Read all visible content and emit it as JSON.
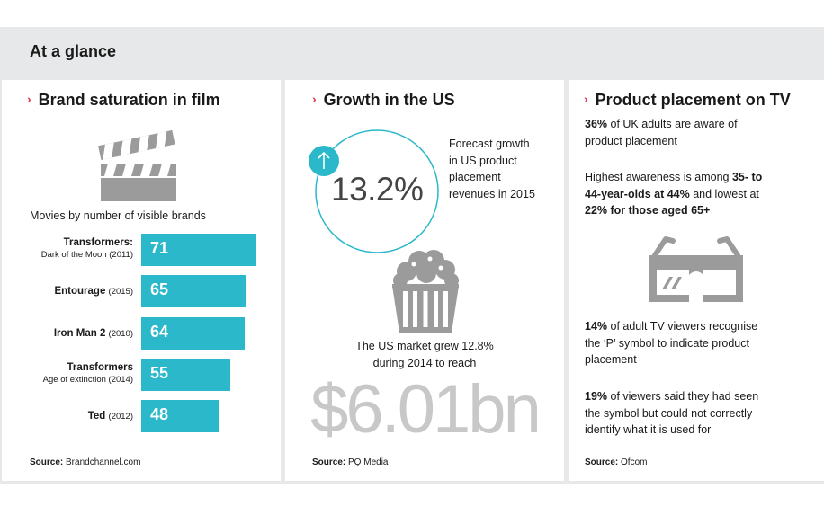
{
  "header": {
    "title": "At a glance"
  },
  "panels": {
    "film": {
      "title": "Brand saturation in film",
      "subtitle": "Movies by number of visible brands",
      "source_label": "Source:",
      "source": "Brandchannel.com",
      "icon": "clapperboard-icon"
    },
    "us": {
      "title": "Growth in the US",
      "percent": "13.2%",
      "forecast_lines": [
        "Forecast growth",
        "in US product",
        "placement",
        "revenues in 2015"
      ],
      "market_lines": [
        "The US market grew 12.8%",
        "during 2014 to reach"
      ],
      "big_value": "$6.01bn",
      "source_label": "Source:",
      "source": "PQ Media",
      "icons": [
        "up-arrow-icon",
        "popcorn-icon"
      ]
    },
    "tv": {
      "title": "Product placement on TV",
      "p1": {
        "bold": "36%",
        "lines": [
          " of UK adults are aware of",
          "product placement"
        ]
      },
      "p2": {
        "lines": [
          "Highest awareness is among ",
          "44-year-olds at 44%",
          " and lowest at",
          "22% for those aged 65+"
        ],
        "bold_1": "35- to",
        "plain_1": "Highest awareness is among "
      },
      "p3": {
        "bold": "14%",
        "lines": [
          " of adult TV viewers recognise",
          "the ‘P’ symbol to indicate product",
          "placement"
        ]
      },
      "p4": {
        "bold": "19%",
        "lines": [
          " of viewers said they had seen",
          "the symbol but could not correctly",
          "identify what it is used for"
        ]
      },
      "source_label": "Source:",
      "source": "Ofcom",
      "icon": "3d-glasses-icon"
    }
  },
  "colors": {
    "accent": "#2bb8ca",
    "chevron": "#e4324a",
    "icon_gray": "#9b9b9b",
    "panel_bg": "#e7e8e9"
  },
  "chart_data": {
    "type": "bar",
    "orientation": "horizontal",
    "title": "Movies by number of visible brands",
    "categories": [
      {
        "name": "Transformers:",
        "sub": "Dark of the Moon (2011)",
        "year": ""
      },
      {
        "name": "Entourage",
        "sub": "",
        "year": "(2015)"
      },
      {
        "name": "Iron Man 2",
        "sub": "",
        "year": "(2010)"
      },
      {
        "name": "Transformers",
        "sub": "Age of extinction (2014)",
        "year": ""
      },
      {
        "name": "Ted",
        "sub": "",
        "year": "(2012)"
      }
    ],
    "values": [
      71,
      65,
      64,
      55,
      48
    ]
  }
}
